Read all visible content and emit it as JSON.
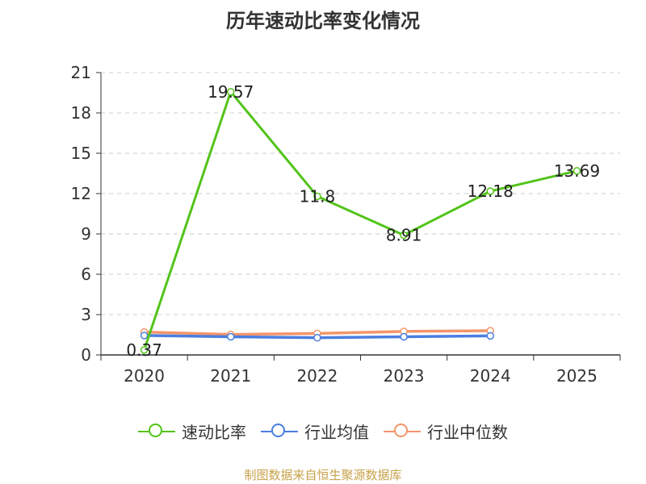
{
  "chart_data": {
    "type": "line",
    "title": "历年速动比率变化情况",
    "categories": [
      "2020",
      "2021",
      "2022",
      "2023",
      "2024",
      "2025"
    ],
    "y_ticks": [
      "0",
      "3",
      "6",
      "9",
      "12",
      "15",
      "18",
      "21"
    ],
    "ylim": [
      0,
      21
    ],
    "grid": true,
    "legend_position": "bottom",
    "series": [
      {
        "name": "速动比率",
        "color": "#52c41a",
        "values": [
          0.37,
          19.57,
          11.8,
          8.91,
          12.18,
          13.69
        ],
        "labels": [
          "0.37",
          "19.57",
          "11.8",
          "8.91",
          "12.18",
          "13.69"
        ]
      },
      {
        "name": "行业均值",
        "color": "#4a7ee0",
        "values": [
          1.45,
          1.35,
          1.28,
          1.35,
          1.42,
          null
        ]
      },
      {
        "name": "行业中位数",
        "color": "#f4956a",
        "values": [
          1.7,
          1.52,
          1.6,
          1.75,
          1.8,
          null
        ]
      }
    ]
  },
  "source": "制图数据来自恒生聚源数据库"
}
